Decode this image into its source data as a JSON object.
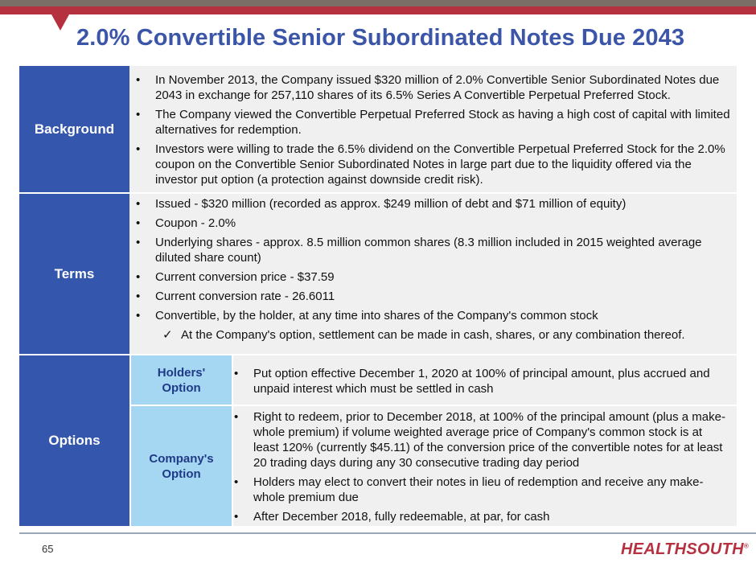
{
  "slide": {
    "title": "2.0% Convertible Senior Subordinated Notes Due 2043",
    "page_number": "65",
    "logo_text": "HEALTHSOUTH",
    "logo_mark": "®"
  },
  "bullet_glyph": "•",
  "check_glyph": "✓",
  "background": {
    "label": "Background",
    "bullets": [
      "In November 2013, the Company issued $320 million of 2.0% Convertible Senior Subordinated Notes due 2043 in exchange for 257,110 shares of its 6.5% Series A Convertible Perpetual Preferred Stock.",
      "The Company viewed the Convertible Perpetual Preferred Stock as having a high cost of capital with limited alternatives for redemption.",
      "Investors were willing to trade the 6.5% dividend on the Convertible Perpetual Preferred Stock for the 2.0% coupon on the Convertible Senior Subordinated Notes in large part due to the liquidity offered via the investor put option (a protection against downside credit risk)."
    ]
  },
  "terms": {
    "label": "Terms",
    "bullets": [
      "Issued - $320 million (recorded as approx. $249 million of debt and $71 million of equity)",
      "Coupon - 2.0%",
      "Underlying shares - approx. 8.5 million common shares (8.3 million included in 2015 weighted average diluted share count)",
      "Current conversion price - $37.59",
      "Current conversion rate - 26.6011",
      "Convertible, by the holder, at any time into shares of the Company's common stock"
    ],
    "sub_bullet": "At the Company's option, settlement can be made in cash, shares, or any combination thereof."
  },
  "options": {
    "label": "Options",
    "holders": {
      "label": "Holders' Option",
      "bullets": [
        "Put option effective December 1, 2020 at 100% of principal amount, plus accrued and unpaid interest which must be settled in cash"
      ]
    },
    "company": {
      "label": "Company's Option",
      "bullets": [
        "Right to redeem, prior to December 2018, at 100% of the principal amount (plus a make-whole premium) if volume weighted average price of Company's common stock is at least 120% (currently $45.11) of the conversion price of the convertible notes for at least 20 trading days during any 30 consecutive trading day period",
        "Holders may elect to convert their notes in lieu of redemption and receive any make-whole premium due",
        "After December 2018, fully redeemable, at par, for cash"
      ]
    }
  },
  "colors": {
    "title": "#3b55a8",
    "label_bg": "#3556ad",
    "sub_label_bg": "#a6d7f2",
    "content_bg": "#f0f0f0",
    "accent_red": "#b5313f"
  }
}
